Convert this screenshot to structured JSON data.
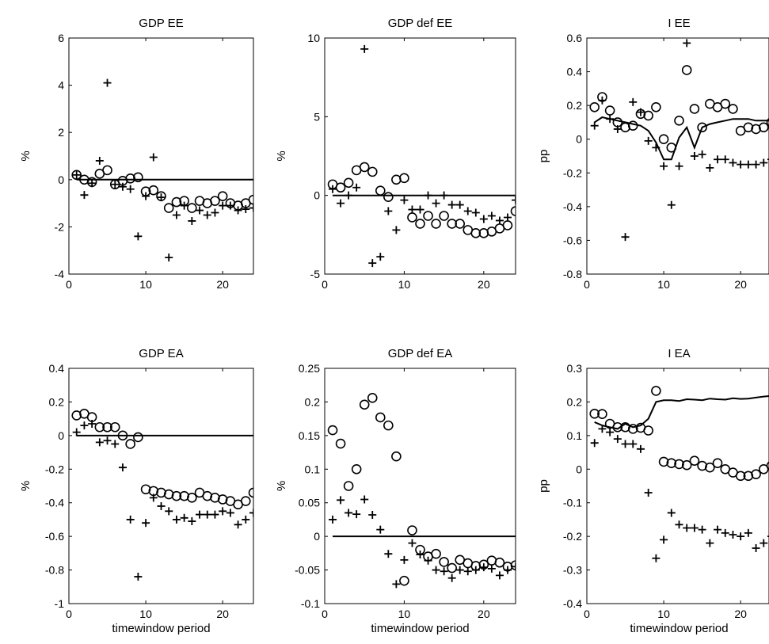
{
  "chart_data": [
    {
      "type": "scatter",
      "title": "GDP EE",
      "xlabel": "",
      "ylabel": "%",
      "xlim": [
        0,
        24
      ],
      "ylim": [
        -4,
        6
      ],
      "xticks": [
        0,
        10,
        20
      ],
      "yticks": [
        -4,
        -2,
        0,
        2,
        4,
        6
      ],
      "grid": false,
      "series": [
        {
          "marker": "circle",
          "x": [
            1,
            2,
            3,
            4,
            5,
            6,
            7,
            8,
            9,
            10,
            11,
            12,
            13,
            14,
            15,
            16,
            17,
            18,
            19,
            20,
            21,
            22,
            23,
            24
          ],
          "y": [
            0.2,
            0.0,
            -0.1,
            0.25,
            0.4,
            -0.2,
            -0.05,
            0.05,
            0.1,
            -0.5,
            -0.45,
            -0.7,
            -1.2,
            -0.95,
            -0.9,
            -1.2,
            -0.9,
            -1.0,
            -0.9,
            -0.7,
            -1.0,
            -1.1,
            -1.0,
            -0.85
          ]
        },
        {
          "marker": "plus",
          "x": [
            1,
            2,
            3,
            4,
            5,
            6,
            7,
            8,
            9,
            10,
            11,
            12,
            13,
            14,
            15,
            16,
            17,
            18,
            19,
            20,
            21,
            22,
            23,
            24
          ],
          "y": [
            0.2,
            -0.65,
            -0.15,
            0.8,
            4.1,
            -0.2,
            -0.3,
            -0.4,
            -2.4,
            -0.7,
            0.95,
            -0.75,
            -3.3,
            -1.5,
            -1.1,
            -1.75,
            -1.3,
            -1.5,
            -1.4,
            -1.1,
            -1.1,
            -1.3,
            -1.25,
            -1.2
          ]
        },
        {
          "marker": "line",
          "x": [
            1,
            24
          ],
          "y": [
            0,
            0
          ]
        }
      ]
    },
    {
      "type": "scatter",
      "title": "GDP def EE",
      "xlabel": "",
      "ylabel": "%",
      "xlim": [
        0,
        24
      ],
      "ylim": [
        -5,
        10
      ],
      "xticks": [
        0,
        10,
        20
      ],
      "yticks": [
        -5,
        0,
        5,
        10
      ],
      "grid": false,
      "series": [
        {
          "marker": "circle",
          "x": [
            1,
            2,
            3,
            4,
            5,
            6,
            7,
            8,
            9,
            10,
            11,
            12,
            13,
            14,
            15,
            16,
            17,
            18,
            19,
            20,
            21,
            22,
            23,
            24
          ],
          "y": [
            0.7,
            0.5,
            0.8,
            1.6,
            1.8,
            1.5,
            0.3,
            -0.1,
            1.0,
            1.1,
            -1.4,
            -1.8,
            -1.3,
            -1.8,
            -1.3,
            -1.8,
            -1.8,
            -2.2,
            -2.4,
            -2.4,
            -2.3,
            -2.1,
            -1.9,
            -1.0
          ]
        },
        {
          "marker": "plus",
          "x": [
            1,
            2,
            3,
            4,
            5,
            6,
            7,
            8,
            9,
            10,
            11,
            12,
            13,
            14,
            15,
            16,
            17,
            18,
            19,
            20,
            21,
            22,
            23,
            24
          ],
          "y": [
            0.4,
            -0.5,
            0.0,
            0.5,
            9.3,
            -4.3,
            -3.9,
            -1.0,
            -2.2,
            -0.3,
            -0.9,
            -0.9,
            0.0,
            -0.5,
            0.0,
            -0.6,
            -0.6,
            -1.0,
            -1.1,
            -1.5,
            -1.3,
            -1.6,
            -1.4,
            -0.3
          ]
        },
        {
          "marker": "line",
          "x": [
            1,
            24
          ],
          "y": [
            0,
            0
          ]
        }
      ]
    },
    {
      "type": "scatter",
      "title": "I EE",
      "xlabel": "",
      "ylabel": "pp",
      "xlim": [
        0,
        24
      ],
      "ylim": [
        -0.8,
        0.6
      ],
      "xticks": [
        0,
        10,
        20
      ],
      "yticks": [
        -0.8,
        -0.6,
        -0.4,
        -0.2,
        0,
        0.2,
        0.4,
        0.6
      ],
      "grid": false,
      "series": [
        {
          "marker": "circle",
          "x": [
            1,
            2,
            3,
            4,
            5,
            6,
            7,
            8,
            9,
            10,
            11,
            12,
            13,
            14,
            15,
            16,
            17,
            18,
            19,
            20,
            21,
            22,
            23,
            24
          ],
          "y": [
            0.19,
            0.25,
            0.17,
            0.1,
            0.07,
            0.08,
            0.15,
            0.14,
            0.19,
            0.0,
            -0.05,
            0.11,
            0.41,
            0.18,
            0.07,
            0.21,
            0.19,
            0.21,
            0.18,
            0.05,
            0.07,
            0.06,
            0.07,
            0.1
          ]
        },
        {
          "marker": "plus",
          "x": [
            1,
            2,
            3,
            4,
            5,
            6,
            7,
            8,
            9,
            10,
            11,
            12,
            13,
            14,
            15,
            16,
            17,
            18,
            19,
            20,
            21,
            22,
            23,
            24
          ],
          "y": [
            0.08,
            0.23,
            0.12,
            0.06,
            -0.58,
            0.22,
            0.16,
            -0.01,
            -0.05,
            -0.16,
            -0.39,
            -0.16,
            0.57,
            -0.1,
            -0.09,
            -0.17,
            -0.12,
            -0.12,
            -0.14,
            -0.15,
            -0.15,
            -0.15,
            -0.14,
            -0.12
          ]
        },
        {
          "marker": "line",
          "x": [
            1,
            2,
            3,
            4,
            5,
            6,
            7,
            8,
            9,
            10,
            11,
            12,
            13,
            14,
            15,
            16,
            17,
            18,
            19,
            20,
            21,
            22,
            23,
            24
          ],
          "y": [
            0.1,
            0.13,
            0.12,
            0.11,
            0.1,
            0.09,
            0.08,
            0.05,
            -0.02,
            -0.12,
            -0.12,
            0.01,
            0.07,
            -0.05,
            0.07,
            0.09,
            0.1,
            0.11,
            0.12,
            0.12,
            0.12,
            0.11,
            0.11,
            0.11
          ]
        }
      ]
    },
    {
      "type": "scatter",
      "title": "GDP EA",
      "xlabel": "timewindow period",
      "ylabel": "%",
      "xlim": [
        0,
        24
      ],
      "ylim": [
        -1,
        0.4
      ],
      "xticks": [
        0,
        10,
        20
      ],
      "yticks": [
        -1,
        -0.8,
        -0.6,
        -0.4,
        -0.2,
        0,
        0.2,
        0.4
      ],
      "grid": false,
      "series": [
        {
          "marker": "circle",
          "x": [
            1,
            2,
            3,
            4,
            5,
            6,
            7,
            8,
            9,
            10,
            11,
            12,
            13,
            14,
            15,
            16,
            17,
            18,
            19,
            20,
            21,
            22,
            23,
            24
          ],
          "y": [
            0.12,
            0.13,
            0.11,
            0.05,
            0.05,
            0.05,
            0.0,
            -0.05,
            -0.01,
            -0.32,
            -0.33,
            -0.34,
            -0.35,
            -0.36,
            -0.36,
            -0.37,
            -0.34,
            -0.36,
            -0.37,
            -0.38,
            -0.39,
            -0.41,
            -0.39,
            -0.34
          ]
        },
        {
          "marker": "plus",
          "x": [
            1,
            2,
            3,
            4,
            5,
            6,
            7,
            8,
            9,
            10,
            11,
            12,
            13,
            14,
            15,
            16,
            17,
            18,
            19,
            20,
            21,
            22,
            23,
            24
          ],
          "y": [
            0.02,
            0.06,
            0.07,
            -0.04,
            -0.03,
            -0.05,
            -0.19,
            -0.5,
            -0.84,
            -0.52,
            -0.37,
            -0.42,
            -0.45,
            -0.5,
            -0.49,
            -0.51,
            -0.47,
            -0.47,
            -0.47,
            -0.45,
            -0.46,
            -0.53,
            -0.5,
            -0.46
          ]
        },
        {
          "marker": "line",
          "x": [
            1,
            24
          ],
          "y": [
            0,
            0
          ]
        }
      ]
    },
    {
      "type": "scatter",
      "title": "GDP def EA",
      "xlabel": "timewindow period",
      "ylabel": "%",
      "xlim": [
        0,
        24
      ],
      "ylim": [
        -0.1,
        0.25
      ],
      "xticks": [
        0,
        10,
        20
      ],
      "yticks": [
        -0.1,
        -0.05,
        0,
        0.05,
        0.1,
        0.15,
        0.2,
        0.25
      ],
      "grid": false,
      "series": [
        {
          "marker": "circle",
          "x": [
            1,
            2,
            3,
            4,
            5,
            6,
            7,
            8,
            9,
            10,
            11,
            12,
            13,
            14,
            15,
            16,
            17,
            18,
            19,
            20,
            21,
            22,
            23,
            24
          ],
          "y": [
            0.158,
            0.138,
            0.075,
            0.1,
            0.196,
            0.206,
            0.177,
            0.165,
            0.119,
            -0.066,
            0.009,
            -0.02,
            -0.03,
            -0.026,
            -0.038,
            -0.047,
            -0.035,
            -0.04,
            -0.044,
            -0.042,
            -0.036,
            -0.039,
            -0.045,
            -0.043
          ]
        },
        {
          "marker": "plus",
          "x": [
            1,
            2,
            3,
            4,
            5,
            6,
            7,
            8,
            9,
            10,
            11,
            12,
            13,
            14,
            15,
            16,
            17,
            18,
            19,
            20,
            21,
            22,
            23,
            24
          ],
          "y": [
            0.025,
            0.054,
            0.035,
            0.033,
            0.055,
            0.032,
            0.01,
            -0.026,
            -0.071,
            -0.035,
            -0.01,
            -0.027,
            -0.036,
            -0.05,
            -0.052,
            -0.062,
            -0.05,
            -0.052,
            -0.05,
            -0.046,
            -0.048,
            -0.058,
            -0.05,
            -0.045
          ]
        },
        {
          "marker": "line",
          "x": [
            1,
            24
          ],
          "y": [
            0,
            0
          ]
        }
      ]
    },
    {
      "type": "scatter",
      "title": "I EA",
      "xlabel": "timewindow period",
      "ylabel": "pp",
      "xlim": [
        0,
        24
      ],
      "ylim": [
        -0.4,
        0.3
      ],
      "xticks": [
        0,
        10,
        20
      ],
      "yticks": [
        -0.4,
        -0.3,
        -0.2,
        -0.1,
        0,
        0.1,
        0.2,
        0.3
      ],
      "grid": false,
      "series": [
        {
          "marker": "circle",
          "x": [
            1,
            2,
            3,
            4,
            5,
            6,
            7,
            8,
            9,
            10,
            11,
            12,
            13,
            14,
            15,
            16,
            17,
            18,
            19,
            20,
            21,
            22,
            23,
            24
          ],
          "y": [
            0.165,
            0.164,
            0.135,
            0.125,
            0.125,
            0.12,
            0.123,
            0.115,
            0.233,
            0.022,
            0.018,
            0.015,
            0.012,
            0.025,
            0.01,
            0.005,
            0.018,
            0.0,
            -0.01,
            -0.02,
            -0.02,
            -0.015,
            0.0,
            0.01
          ]
        },
        {
          "marker": "plus",
          "x": [
            1,
            2,
            3,
            4,
            5,
            6,
            7,
            8,
            9,
            10,
            11,
            12,
            13,
            14,
            15,
            16,
            17,
            18,
            19,
            20,
            21,
            22,
            23,
            24
          ],
          "y": [
            0.078,
            0.12,
            0.11,
            0.09,
            0.075,
            0.075,
            0.06,
            -0.07,
            -0.265,
            -0.21,
            -0.13,
            -0.165,
            -0.175,
            -0.175,
            -0.18,
            -0.22,
            -0.18,
            -0.19,
            -0.195,
            -0.2,
            -0.19,
            -0.235,
            -0.22,
            -0.2
          ]
        },
        {
          "marker": "line",
          "x": [
            1,
            2,
            3,
            4,
            5,
            6,
            7,
            8,
            9,
            10,
            11,
            12,
            13,
            14,
            15,
            16,
            17,
            18,
            19,
            20,
            21,
            22,
            23,
            24
          ],
          "y": [
            0.14,
            0.13,
            0.125,
            0.12,
            0.135,
            0.125,
            0.13,
            0.15,
            0.2,
            0.205,
            0.205,
            0.203,
            0.208,
            0.207,
            0.205,
            0.21,
            0.208,
            0.207,
            0.211,
            0.209,
            0.21,
            0.213,
            0.216,
            0.218
          ]
        }
      ]
    }
  ]
}
